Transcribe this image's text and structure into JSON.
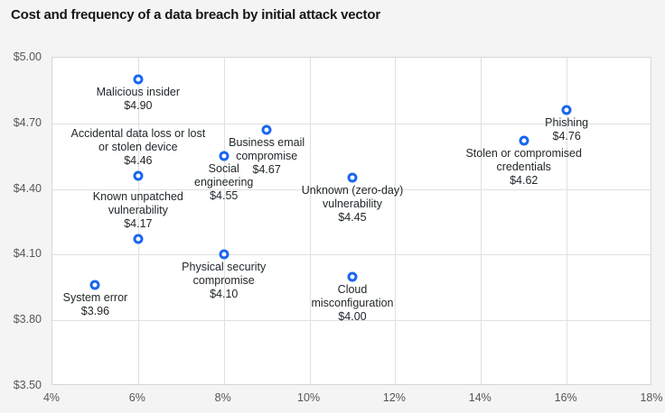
{
  "title": "Cost and frequency of a data breach by initial attack vector",
  "colors": {
    "background": "#f4f4f4",
    "plot_background": "#ffffff",
    "gridline": "#e0e0e0",
    "plot_border": "#d6d6d6",
    "marker_blue": "#1a66ee",
    "title_text": "#161616",
    "point_label_text": "#21272a",
    "tick_text": "#565656"
  },
  "chart_data": {
    "type": "scatter",
    "title": "Cost and frequency of a data breach by initial attack vector",
    "xlabel": "",
    "ylabel": "",
    "x_unit": "percent of breaches",
    "y_unit": "cost in $ millions",
    "xlim": [
      4,
      18
    ],
    "ylim": [
      3.5,
      5.0
    ],
    "grid": true,
    "x_ticks": [
      {
        "value": 4,
        "label": "4%"
      },
      {
        "value": 6,
        "label": "6%"
      },
      {
        "value": 8,
        "label": "8%"
      },
      {
        "value": 10,
        "label": "10%"
      },
      {
        "value": 12,
        "label": "12%"
      },
      {
        "value": 14,
        "label": "14%"
      },
      {
        "value": 16,
        "label": "16%"
      },
      {
        "value": 18,
        "label": "18%"
      }
    ],
    "y_ticks": [
      {
        "value": 5.0,
        "label": "$5.00"
      },
      {
        "value": 4.7,
        "label": "$4.70"
      },
      {
        "value": 4.4,
        "label": "$4.40"
      },
      {
        "value": 4.1,
        "label": "$4.10"
      },
      {
        "value": 3.8,
        "label": "$3.80"
      },
      {
        "value": 3.5,
        "label": "$3.50"
      }
    ],
    "points": [
      {
        "name": "Malicious insider",
        "label_lines": [
          "Malicious insider"
        ],
        "value_label": "$4.90",
        "x": 6,
        "y": 4.9,
        "label_position": "below"
      },
      {
        "name": "Accidental data loss or lost or stolen device",
        "label_lines": [
          "Accidental data loss or lost",
          "or stolen device"
        ],
        "value_label": "$4.46",
        "x": 6,
        "y": 4.46,
        "label_position": "above"
      },
      {
        "name": "Known unpatched vulnerability",
        "label_lines": [
          "Known unpatched",
          "vulnerability"
        ],
        "value_label": "$4.17",
        "x": 6,
        "y": 4.17,
        "label_position": "above"
      },
      {
        "name": "System error",
        "label_lines": [
          "System error"
        ],
        "value_label": "$3.96",
        "x": 5,
        "y": 3.96,
        "label_position": "below"
      },
      {
        "name": "Business email compromise",
        "label_lines": [
          "Business email",
          "compromise"
        ],
        "value_label": "$4.67",
        "x": 9,
        "y": 4.67,
        "label_position": "below"
      },
      {
        "name": "Social engineering",
        "label_lines": [
          "Social",
          "engineering"
        ],
        "value_label": "$4.55",
        "x": 8,
        "y": 4.55,
        "label_position": "below"
      },
      {
        "name": "Physical security compromise",
        "label_lines": [
          "Physical security",
          "compromise"
        ],
        "value_label": "$4.10",
        "x": 8,
        "y": 4.1,
        "label_position": "below"
      },
      {
        "name": "Unknown (zero-day) vulnerability",
        "label_lines": [
          "Unknown (zero-day)",
          "vulnerability"
        ],
        "value_label": "$4.45",
        "x": 11,
        "y": 4.45,
        "label_position": "below"
      },
      {
        "name": "Cloud misconfiguration",
        "label_lines": [
          "Cloud",
          "misconfiguration"
        ],
        "value_label": "$4.00",
        "x": 11,
        "y": 4.0,
        "label_position": "below"
      },
      {
        "name": "Stolen or compromised credentials",
        "label_lines": [
          "Stolen or compromised",
          "credentials"
        ],
        "value_label": "$4.62",
        "x": 15,
        "y": 4.62,
        "label_position": "below"
      },
      {
        "name": "Phishing",
        "label_lines": [
          "Phishing"
        ],
        "value_label": "$4.76",
        "x": 16,
        "y": 4.76,
        "label_position": "below"
      }
    ]
  }
}
